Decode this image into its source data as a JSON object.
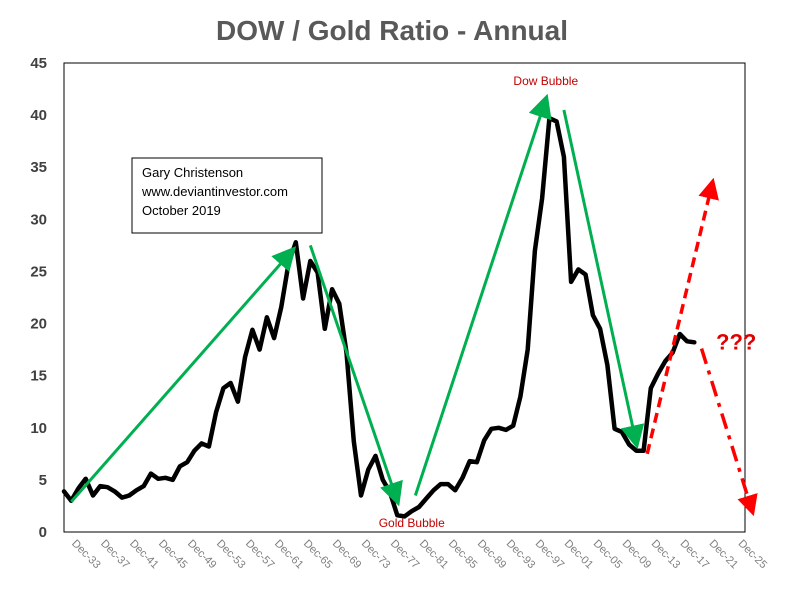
{
  "chart_data": {
    "type": "line",
    "title": "DOW / Gold Ratio - Annual",
    "xlabel": "",
    "ylabel": "",
    "ylim": [
      0,
      45
    ],
    "yticks": [
      0,
      5,
      10,
      15,
      20,
      25,
      30,
      35,
      40,
      45
    ],
    "xlim": [
      1932,
      2026
    ],
    "xticks": [
      {
        "year": 1933,
        "label": "Dec-33"
      },
      {
        "year": 1937,
        "label": "Dec-37"
      },
      {
        "year": 1941,
        "label": "Dec-41"
      },
      {
        "year": 1945,
        "label": "Dec-45"
      },
      {
        "year": 1949,
        "label": "Dec-49"
      },
      {
        "year": 1953,
        "label": "Dec-53"
      },
      {
        "year": 1957,
        "label": "Dec-57"
      },
      {
        "year": 1961,
        "label": "Dec-61"
      },
      {
        "year": 1965,
        "label": "Dec-65"
      },
      {
        "year": 1969,
        "label": "Dec-69"
      },
      {
        "year": 1973,
        "label": "Dec-73"
      },
      {
        "year": 1977,
        "label": "Dec-77"
      },
      {
        "year": 1981,
        "label": "Dec-81"
      },
      {
        "year": 1985,
        "label": "Dec-85"
      },
      {
        "year": 1989,
        "label": "Dec-89"
      },
      {
        "year": 1993,
        "label": "Dec-93"
      },
      {
        "year": 1997,
        "label": "Dec-97"
      },
      {
        "year": 2001,
        "label": "Dec-01"
      },
      {
        "year": 2005,
        "label": "Dec-05"
      },
      {
        "year": 2009,
        "label": "Dec-09"
      },
      {
        "year": 2013,
        "label": "Dec-13"
      },
      {
        "year": 2017,
        "label": "Dec-17"
      },
      {
        "year": 2021,
        "label": "Dec-21"
      },
      {
        "year": 2025,
        "label": "Dec-25"
      }
    ],
    "grid": false,
    "series": [
      {
        "color": "#000000",
        "points": [
          [
            1932,
            3.9
          ],
          [
            1933,
            3.0
          ],
          [
            1934,
            4.2
          ],
          [
            1935,
            5.1
          ],
          [
            1936,
            3.5
          ],
          [
            1937,
            4.4
          ],
          [
            1938,
            4.3
          ],
          [
            1939,
            3.9
          ],
          [
            1940,
            3.3
          ],
          [
            1941,
            3.5
          ],
          [
            1942,
            4.0
          ],
          [
            1943,
            4.4
          ],
          [
            1944,
            5.6
          ],
          [
            1945,
            5.1
          ],
          [
            1946,
            5.2
          ],
          [
            1947,
            5.0
          ],
          [
            1948,
            6.3
          ],
          [
            1949,
            6.7
          ],
          [
            1950,
            7.8
          ],
          [
            1951,
            8.5
          ],
          [
            1952,
            8.2
          ],
          [
            1953,
            11.5
          ],
          [
            1954,
            13.8
          ],
          [
            1955,
            14.3
          ],
          [
            1956,
            12.5
          ],
          [
            1957,
            16.8
          ],
          [
            1958,
            19.4
          ],
          [
            1959,
            17.5
          ],
          [
            1960,
            20.6
          ],
          [
            1961,
            18.6
          ],
          [
            1962,
            21.6
          ],
          [
            1963,
            25.8
          ],
          [
            1964,
            27.8
          ],
          [
            1965,
            22.4
          ],
          [
            1966,
            26.0
          ],
          [
            1967,
            24.9
          ],
          [
            1968,
            19.5
          ],
          [
            1969,
            23.3
          ],
          [
            1970,
            21.9
          ],
          [
            1971,
            17.2
          ],
          [
            1972,
            8.7
          ],
          [
            1973,
            3.5
          ],
          [
            1974,
            6.0
          ],
          [
            1975,
            7.3
          ],
          [
            1976,
            5.0
          ],
          [
            1977,
            3.8
          ],
          [
            1978,
            1.6
          ],
          [
            1979,
            1.5
          ],
          [
            1980,
            2.0
          ],
          [
            1981,
            2.4
          ],
          [
            1982,
            3.2
          ],
          [
            1983,
            4.0
          ],
          [
            1984,
            4.6
          ],
          [
            1985,
            4.6
          ],
          [
            1986,
            4.0
          ],
          [
            1987,
            5.2
          ],
          [
            1988,
            6.8
          ],
          [
            1989,
            6.7
          ],
          [
            1990,
            8.8
          ],
          [
            1991,
            9.9
          ],
          [
            1992,
            10.0
          ],
          [
            1993,
            9.8
          ],
          [
            1994,
            10.2
          ],
          [
            1995,
            13.0
          ],
          [
            1996,
            17.5
          ],
          [
            1997,
            27.0
          ],
          [
            1998,
            32.0
          ],
          [
            1999,
            39.7
          ],
          [
            2000,
            39.4
          ],
          [
            2001,
            36.0
          ],
          [
            2002,
            24.0
          ],
          [
            2003,
            25.2
          ],
          [
            2004,
            24.7
          ],
          [
            2005,
            20.8
          ],
          [
            2006,
            19.5
          ],
          [
            2007,
            16.0
          ],
          [
            2008,
            9.9
          ],
          [
            2009,
            9.6
          ],
          [
            2010,
            8.4
          ],
          [
            2011,
            7.8
          ],
          [
            2012,
            7.8
          ],
          [
            2013,
            13.8
          ],
          [
            2014,
            15.2
          ],
          [
            2015,
            16.4
          ],
          [
            2016,
            17.2
          ],
          [
            2017,
            19.0
          ],
          [
            2018,
            18.3
          ],
          [
            2019,
            18.2
          ]
        ]
      }
    ],
    "trend_arrows": [
      {
        "color": "#00b050",
        "from": [
          1933,
          2.9
        ],
        "to": [
          1963.5,
          27.0
        ]
      },
      {
        "color": "#00b050",
        "from": [
          1966,
          27.5
        ],
        "to": [
          1978,
          3.0
        ]
      },
      {
        "color": "#00b050",
        "from": [
          1980.5,
          3.5
        ],
        "to": [
          1998.5,
          41.5
        ]
      },
      {
        "color": "#00b050",
        "from": [
          2001,
          40.5
        ],
        "to": [
          2011,
          8.5
        ]
      }
    ],
    "forecast_arrows": [
      {
        "color": "#ff0000",
        "from": [
          2012.5,
          7.5
        ],
        "to": [
          2021.5,
          33.5
        ]
      },
      {
        "color": "#ff0000",
        "from": [
          2020,
          17.6
        ],
        "to": [
          2027,
          2.0
        ]
      }
    ],
    "annotations": [
      {
        "text": "Dow Bubble",
        "x": 1998.5,
        "y": 42.9
      },
      {
        "text": "Gold Bubble",
        "x": 1980,
        "y": 0.5
      },
      {
        "text": "???",
        "x": 2022,
        "y": 17.5
      }
    ],
    "info_box": {
      "lines": [
        "Gary Christenson",
        "www.deviantinvestor.com",
        "October 2019"
      ]
    }
  }
}
